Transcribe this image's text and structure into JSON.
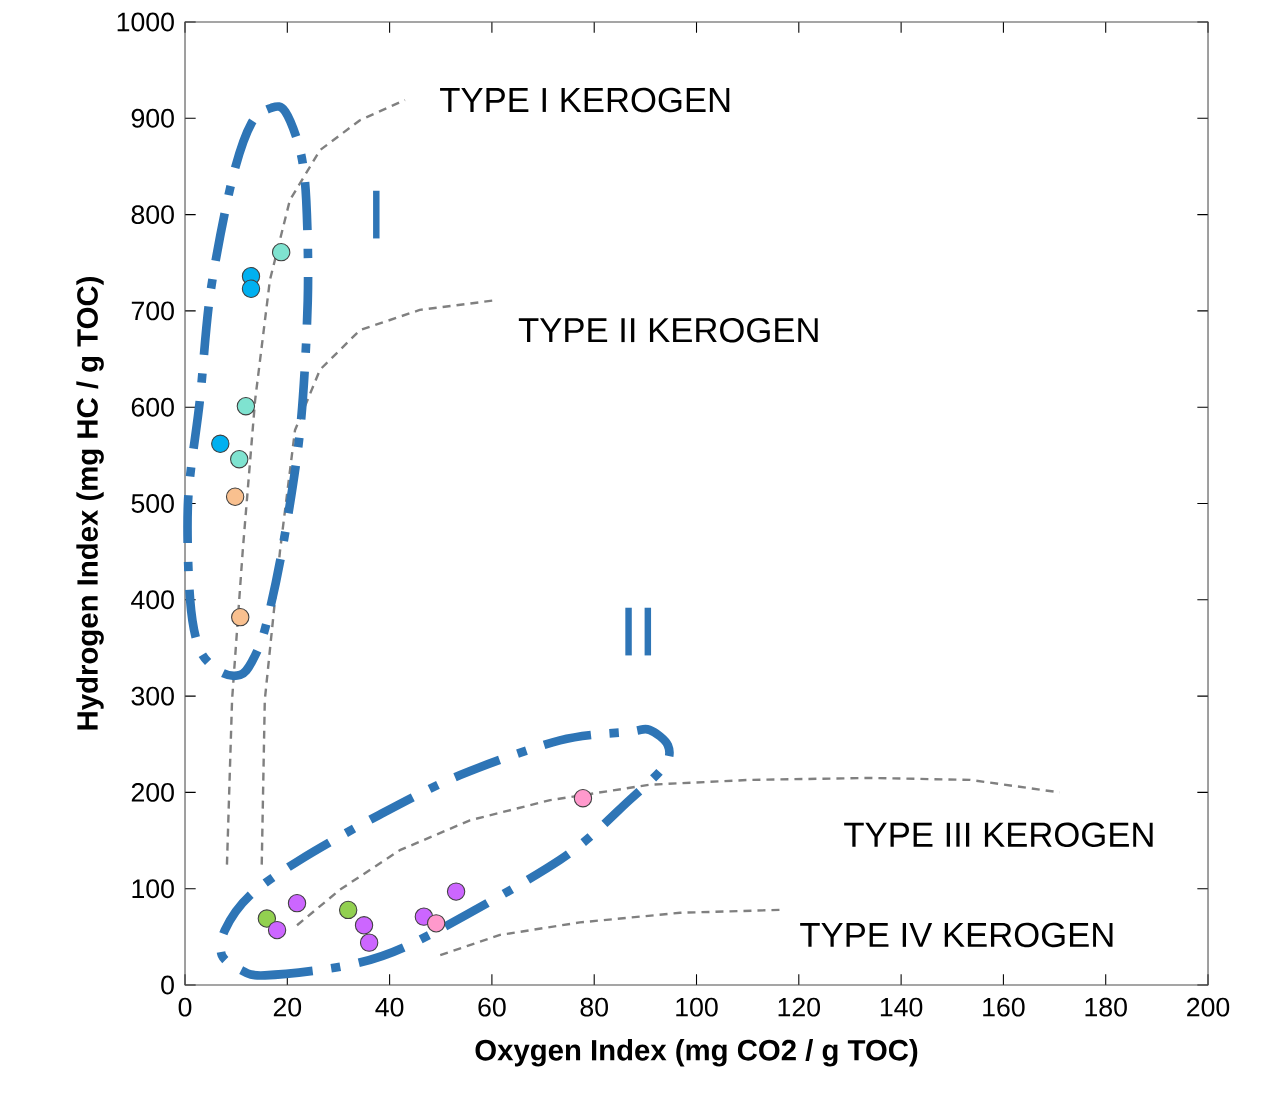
{
  "chart_data": {
    "type": "scatter",
    "xlabel": "Oxygen Index (mg CO2 / g TOC)",
    "ylabel": "Hydrogen Index (mg HC / g TOC)",
    "xlim": [
      0,
      200
    ],
    "ylim": [
      0,
      1000
    ],
    "xticks": [
      0,
      20,
      40,
      60,
      80,
      100,
      120,
      140,
      160,
      180,
      200
    ],
    "yticks": [
      0,
      100,
      200,
      300,
      400,
      500,
      600,
      700,
      800,
      900,
      1000
    ],
    "series": [
      {
        "type": "line",
        "color": "#808080",
        "line_style": "dashed",
        "marker": "none",
        "x": [
          8.2,
          9.2,
          11.3,
          13.7,
          16.6,
          20.5,
          26.4,
          34.2,
          43
        ],
        "values": [
          125,
          296,
          452,
          607,
          732,
          815,
          867,
          898,
          919
        ]
      },
      {
        "type": "line",
        "color": "#808080",
        "line_style": "dashed",
        "marker": "none",
        "x": [
          15,
          15.6,
          18.6,
          21.5,
          26.4,
          34.2,
          45.9,
          60.6
        ],
        "values": [
          125,
          296,
          452,
          576,
          639,
          680,
          701,
          711
        ]
      },
      {
        "type": "line",
        "color": "#808080",
        "line_style": "dashed",
        "marker": "none",
        "x": [
          21.9,
          30.3,
          42,
          55.7,
          71.4,
          90.9,
          110.5,
          134,
          153.5,
          171
        ],
        "values": [
          62,
          99,
          140,
          171,
          192,
          208,
          213,
          215,
          213,
          200
        ]
      },
      {
        "type": "line",
        "color": "#808080",
        "line_style": "dashed",
        "marker": "none",
        "x": [
          49.9,
          61.6,
          77.2,
          96.8,
          116.3
        ],
        "values": [
          31,
          52,
          65,
          75,
          78
        ]
      },
      {
        "color": "#00b0f0",
        "marker": "circle",
        "x": [
          12.9,
          12.9,
          6.9
        ],
        "values": [
          736,
          723,
          562
        ]
      },
      {
        "color": "#7fe3d0",
        "marker": "circle",
        "x": [
          18.8,
          11.9,
          10.6
        ],
        "values": [
          761,
          601,
          546
        ]
      },
      {
        "color": "#f9c08f",
        "marker": "circle",
        "x": [
          9.8,
          10.8
        ],
        "values": [
          507,
          382
        ]
      },
      {
        "color": "#92d050",
        "marker": "circle",
        "x": [
          16,
          31.9
        ],
        "values": [
          69,
          78
        ]
      },
      {
        "color": "#cc66ff",
        "marker": "circle",
        "x": [
          18,
          21.9,
          35,
          36,
          46.7,
          53
        ],
        "values": [
          57,
          85,
          62,
          44,
          71,
          97
        ]
      },
      {
        "color": "#ff99cc",
        "marker": "circle",
        "x": [
          49.1,
          77.8
        ],
        "values": [
          64,
          194
        ]
      }
    ],
    "annotations": [
      "TYPE I KEROGEN",
      "TYPE II KEROGEN",
      "TYPE III KEROGEN",
      "TYPE IV KEROGEN",
      "I",
      "II"
    ]
  }
}
